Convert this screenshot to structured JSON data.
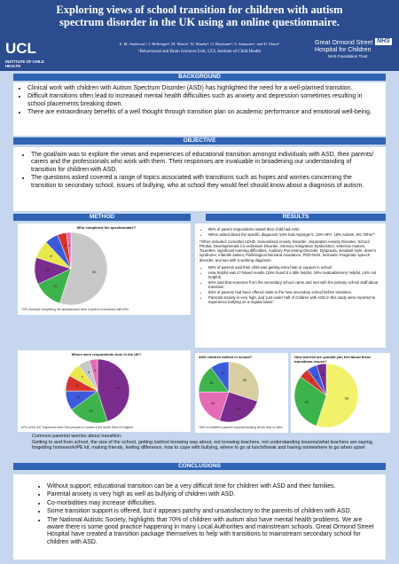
{
  "header": {
    "title": "Exploring views of school transition for children with autism spectrum disorder in the UK using an online questionnaire.",
    "authors": "S. M. Anderson¹, J. Hellriegel¹, M. Marin¹, W. Mandy¹, O. Baykaner¹, S. Stamatez¹, and D. Skuse¹",
    "affiliation": "¹Behavioural and Brain Sciences Unit, UCL Institute of Child Health",
    "logo_left": {
      "name": "UCL",
      "subtitle": "INSTITUTE OF CHILD HEALTH"
    },
    "logo_right": {
      "line1": "Great Ormond Street",
      "line2": "Hospital for Children",
      "badge": "NHS",
      "trust": "NHS Foundation Trust"
    }
  },
  "background": {
    "heading": "BACKGROUND",
    "bullets": [
      "Clinical work with children with Autism Spectrum Disorder (ASD) has highlighted the need for a well-planned transition.",
      "Difficult transitions often lead to increased mental health difficulties such as anxiety and depression sometimes resulting in school placements breaking down.",
      "There are extraordinary benefits of a well thought through transition plan on academic performance and emotional well-being."
    ]
  },
  "objective": {
    "heading": "OBJECTIVE",
    "bullets": [
      "The goal/aim was to explore the views and experiences of educational transition amongst individuals with ASD, their parents/ carers and the professionals who work with them. Their responses are invaluable in broadening our understanding of transition for children with ASD.",
      "The questions asked covered a range of topics associated with transitions such as hopes and worries concerning the transition to secondary school, issues of bullying, who at school they would feel should know about a diagnosis of autism."
    ]
  },
  "method": {
    "heading": "METHOD"
  },
  "results": {
    "heading": "RESULTS",
    "bullets_1": [
      "95% of parent respondents stated their child had ASD.",
      "When asked about the specific diagnosis: 54% had Asperger's, 13% HFA, 18% Autism, 8% 'Other'*"
    ],
    "note": "*Other included: comorbid ADHD, Generalised Anxiety Disorder, Separation Anxiety Disorder, School Phobia, Developmental Co-ordination Disorder, Sensory Integration Dysfunction, selective mutism, Tourettes, significant learning difficulties, Auditory Processing Disorder, Dyspraxia, avoidant style, down's syndrome, infantile autism, Pathological Demand Avoidance, PDD-NOS, Semantic Pragmatic speech disorder, and two with a working diagnosis.",
    "bullets_2": [
      "68% of parents said their child was getting extra help or support in school",
      "How helpful was it? Mixed results (19% found it a little helpful, 18% invaluable/very helpful, 14% not helpful)",
      "60% said that someone from the secondary school came and met with the primary school staff about transition.",
      "83% of parents had been offered visits to the new secondary school before transition.",
      "Parental anxiety is very high, and 'just under half of children with ASD in this study were reported to experience bullying on a regular basis'."
    ]
  },
  "charts": [
    {
      "type": "pie",
      "title": "Who completed the questionnaire?",
      "caption": "70% of people completing the questionnaire were a parent of someone with ASD",
      "values": [
        55,
        13,
        12,
        8,
        6,
        4,
        2
      ],
      "colors": [
        "#c8c8c8",
        "#3cb44b",
        "#7b2d8e",
        "#e8e84a",
        "#3b5bdb",
        "#d9342b",
        "#e46cb6"
      ]
    },
    {
      "type": "pie",
      "title": "Where were respondents from in the UK?",
      "caption": "67% of the 447 responses were from people in London & the South East of England",
      "values": [
        45,
        20,
        10,
        8,
        7,
        6,
        4
      ],
      "colors": [
        "#7b2d8e",
        "#3cb44b",
        "#3b5bdb",
        "#d9342b",
        "#e8e84a",
        "#c8c8c8",
        "#e46cb6"
      ]
    },
    {
      "type": "pie",
      "title": "ASD children bullied in school?",
      "caption": "~46% of children's parents reported bullying all the time or often",
      "values": [
        30,
        25,
        20,
        15,
        10
      ],
      "colors": [
        "#d8cfa0",
        "#7b2d8e",
        "#e46cb6",
        "#3cb44b",
        "#3b5bdb"
      ]
    },
    {
      "type": "pie",
      "title": "How worried are you/did you feel about these transitions issues?",
      "caption": "",
      "values": [
        55,
        30,
        5,
        5,
        5
      ],
      "colors": [
        "#f2f26a",
        "#3cb44b",
        "#d9342b",
        "#3b5bdb",
        "#7b2d8e"
      ]
    }
  ],
  "worries": {
    "heading": "Common parental worries about transition:",
    "text": "Getting to and from school, the size of the school, getting lost/not knowing way about, not knowing teachers, not understanding lessons/what teachers are saying, forgetting homework/PE kit, making friends, feeling difference, how to cope with bullying, where to go at lunch/break and having somewhere to go when upset"
  },
  "conclusions": {
    "heading": "CONCLUSIONS",
    "bullets": [
      "Without support, educational transition can be a very difficult time for children with ASD and their families.",
      "Parental anxiety is very high as well as bullying of children with ASD.",
      "Co-morbidities may increase difficulties.",
      "Some transition support is offered, but it appears patchy and unsatisfactory to the parents of children with ASD.",
      "The National Autistic Society, highlights that 70% of children with autism also have mental health problems. We are aware there is some good practice happening in many Local Authorities and mainstream schools. Great Ormond Street Hospital have created a transition package themselves to help with transitions to mainstream secondary school for children with ASD."
    ]
  }
}
